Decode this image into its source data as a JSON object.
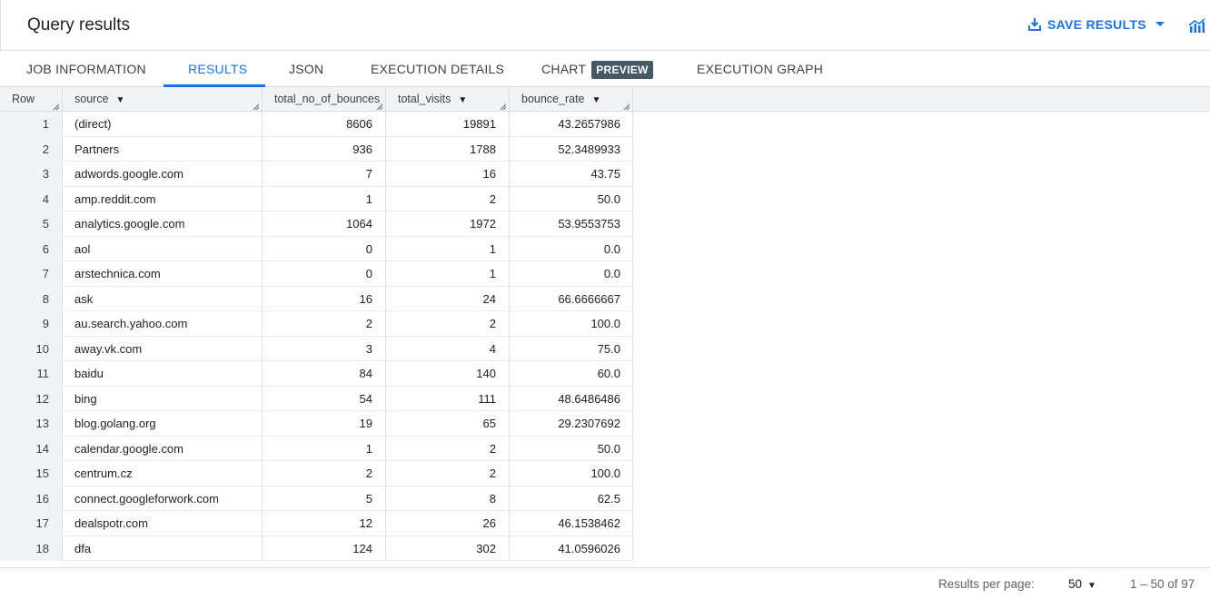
{
  "header": {
    "title": "Query results",
    "save_label": "SAVE RESULTS"
  },
  "tabs": [
    {
      "label": "JOB INFORMATION"
    },
    {
      "label": "RESULTS"
    },
    {
      "label": "JSON"
    },
    {
      "label": "EXECUTION DETAILS"
    },
    {
      "label": "CHART",
      "badge": "PREVIEW"
    },
    {
      "label": "EXECUTION GRAPH"
    }
  ],
  "active_tab": "RESULTS",
  "table": {
    "columns": [
      "Row",
      "source",
      "total_no_of_bounces",
      "total_visits",
      "bounce_rate"
    ],
    "rows": [
      [
        "1",
        "(direct)",
        "8606",
        "19891",
        "43.2657986"
      ],
      [
        "2",
        "Partners",
        "936",
        "1788",
        "52.3489933"
      ],
      [
        "3",
        "adwords.google.com",
        "7",
        "16",
        "43.75"
      ],
      [
        "4",
        "amp.reddit.com",
        "1",
        "2",
        "50.0"
      ],
      [
        "5",
        "analytics.google.com",
        "1064",
        "1972",
        "53.9553753"
      ],
      [
        "6",
        "aol",
        "0",
        "1",
        "0.0"
      ],
      [
        "7",
        "arstechnica.com",
        "0",
        "1",
        "0.0"
      ],
      [
        "8",
        "ask",
        "16",
        "24",
        "66.6666667"
      ],
      [
        "9",
        "au.search.yahoo.com",
        "2",
        "2",
        "100.0"
      ],
      [
        "10",
        "away.vk.com",
        "3",
        "4",
        "75.0"
      ],
      [
        "11",
        "baidu",
        "84",
        "140",
        "60.0"
      ],
      [
        "12",
        "bing",
        "54",
        "111",
        "48.6486486"
      ],
      [
        "13",
        "blog.golang.org",
        "19",
        "65",
        "29.2307692"
      ],
      [
        "14",
        "calendar.google.com",
        "1",
        "2",
        "50.0"
      ],
      [
        "15",
        "centrum.cz",
        "2",
        "2",
        "100.0"
      ],
      [
        "16",
        "connect.googleforwork.com",
        "5",
        "8",
        "62.5"
      ],
      [
        "17",
        "dealspotr.com",
        "12",
        "26",
        "46.1538462"
      ],
      [
        "18",
        "dfa",
        "124",
        "302",
        "41.0596026"
      ]
    ]
  },
  "footer": {
    "rpp_label": "Results per page:",
    "rpp_value": "50",
    "range": "1 – 50 of 97"
  },
  "colors": {
    "accent": "#1a73e8",
    "badge": "#455a64",
    "header_bg": "#f1f3f4"
  },
  "icons": {
    "save": "download-icon",
    "dropdown": "caret-down-icon",
    "explore": "chart-icon",
    "sort": "sort-arrow-icon"
  }
}
